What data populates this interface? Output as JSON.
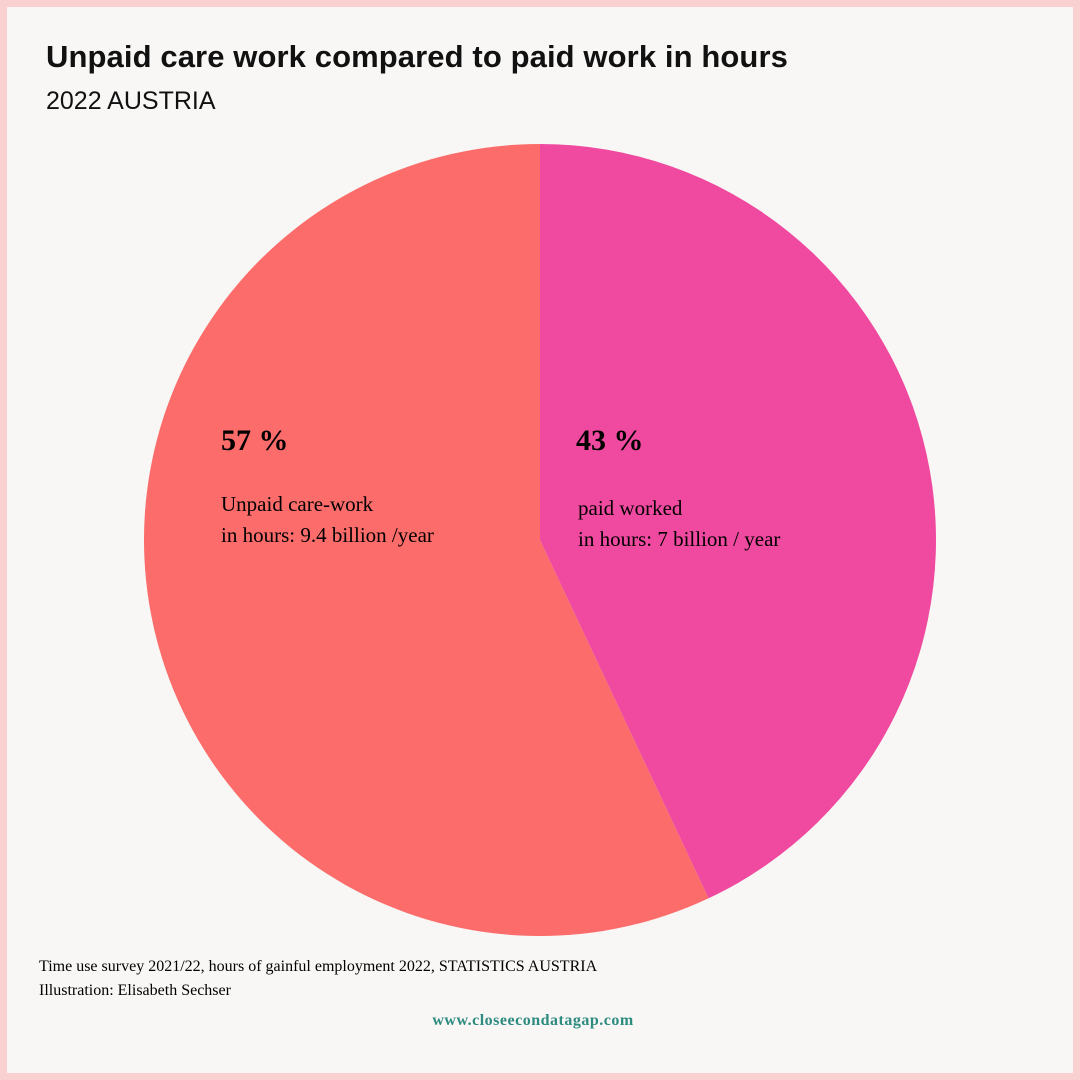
{
  "header": {
    "title": "Unpaid care work compared to paid work in hours",
    "subtitle": "2022 AUSTRIA"
  },
  "chart_data": {
    "type": "pie",
    "title": "Unpaid care work compared to paid work in hours",
    "subtitle": "2022 AUSTRIA",
    "slices": [
      {
        "percent_label": "57 %",
        "value": 57,
        "desc_line1": "Unpaid care-work",
        "desc_line2": "in hours: 9.4 billion /year",
        "color": "#fc6c6a"
      },
      {
        "percent_label": "43 %",
        "value": 43,
        "desc_line1": "paid worked",
        "desc_line2": "in hours: 7 billion / year",
        "color": "#ef4a9f"
      }
    ]
  },
  "footer": {
    "source_line1": "Time use survey 2021/22, hours of gainful employment 2022, STATISTICS AUSTRIA",
    "source_line2": "Illustration: Elisabeth Sechser",
    "url": "www.closeecondatagap.com"
  },
  "colors": {
    "background": "#f8f7f5",
    "border": "#f9d1d1",
    "url_color": "#2e8b7f"
  }
}
